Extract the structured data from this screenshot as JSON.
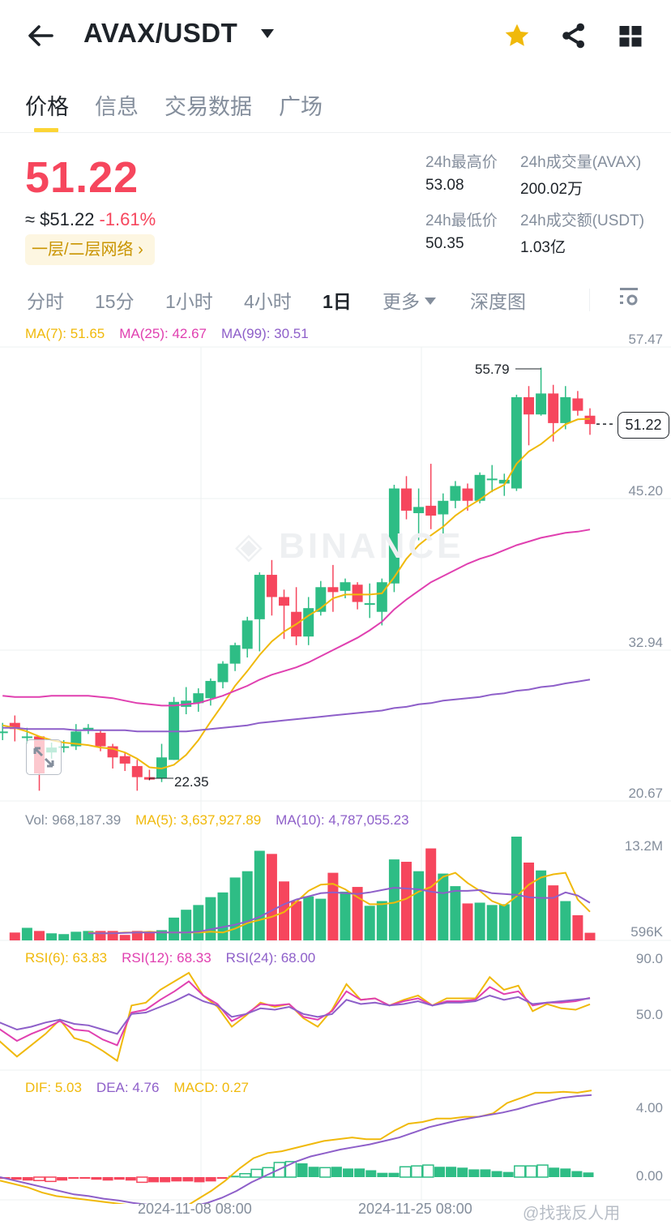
{
  "header": {
    "pair": "AVAX/USDT",
    "icons": [
      "back-arrow-icon",
      "star-icon",
      "share-icon",
      "grid-icon"
    ],
    "star_color": "#f0b90b"
  },
  "tabs": [
    {
      "label": "价格",
      "active": true
    },
    {
      "label": "信息",
      "active": false
    },
    {
      "label": "交易数据",
      "active": false
    },
    {
      "label": "广场",
      "active": false
    }
  ],
  "ticker": {
    "last_price": "51.22",
    "fiat_price": "≈ $51.22",
    "change_pct": "-1.61%",
    "network_badge": "一层/二层网络 ›",
    "stats": {
      "high_label": "24h最高价",
      "high": "53.08",
      "vol_base_label": "24h成交量(AVAX)",
      "vol_base": "200.02万",
      "low_label": "24h最低价",
      "low": "50.35",
      "vol_quote_label": "24h成交额(USDT)",
      "vol_quote": "1.03亿"
    }
  },
  "intervals": [
    {
      "label": "分时",
      "active": false
    },
    {
      "label": "15分",
      "active": false
    },
    {
      "label": "1小时",
      "active": false
    },
    {
      "label": "4小时",
      "active": false
    },
    {
      "label": "1日",
      "active": true
    },
    {
      "label": "更多",
      "active": false,
      "dropdown": true
    },
    {
      "label": "深度图",
      "active": false
    }
  ],
  "colors": {
    "up": "#2ebd85",
    "down": "#f6465d",
    "ma7": "#f0b90b",
    "ma25": "#e040b0",
    "ma99": "#8e5fc9",
    "grid": "#eef0f2",
    "axis_text": "#848e9c"
  },
  "price_legend": {
    "ma7": "MA(7): 51.65",
    "ma25": "MA(25): 42.67",
    "ma99": "MA(99): 30.51"
  },
  "price_axis": [
    "57.47",
    "45.20",
    "32.94",
    "20.67"
  ],
  "last_price_tag": "51.22",
  "high_marker": "55.79",
  "low_marker": "22.35",
  "watermark_brand": "BINANCE",
  "volume_legend": {
    "vol": "Vol: 968,187.39",
    "ma5": "MA(5): 3,637,927.89",
    "ma10": "MA(10): 4,787,055.23"
  },
  "volume_axis": [
    "13.2M",
    "596K"
  ],
  "rsi_legend": {
    "rsi6": "RSI(6): 63.83",
    "rsi12": "RSI(12): 68.33",
    "rsi24": "RSI(24): 68.00"
  },
  "rsi_axis": [
    "90.0",
    "50.0"
  ],
  "macd_legend": {
    "dif": "DIF: 5.03",
    "dea": "DEA: 4.76",
    "macd": "MACD: 0.27"
  },
  "macd_axis": [
    "4.00",
    "0.00"
  ],
  "x_axis": [
    "2024-11-08 08:00",
    "2024-11-25 08:00"
  ],
  "footer_watermark": "@找我反人用",
  "chart_data": {
    "type": "candlestick",
    "title": "AVAX/USDT 1D",
    "price_range": [
      20.67,
      57.47
    ],
    "candles": [
      {
        "o": 26.3,
        "c": 26.3,
        "h": 27.0,
        "l": 25.6
      },
      {
        "o": 27.0,
        "c": 26.5,
        "h": 27.6,
        "l": 25.5
      },
      {
        "o": 25.9,
        "c": 25.9,
        "h": 26.6,
        "l": 25.3
      },
      {
        "o": 25.9,
        "c": 22.9,
        "h": 25.9,
        "l": 21.5
      },
      {
        "o": 24.6,
        "c": 25.0,
        "h": 25.4,
        "l": 24.1
      },
      {
        "o": 25.0,
        "c": 25.1,
        "h": 25.6,
        "l": 24.6
      },
      {
        "o": 25.1,
        "c": 26.3,
        "h": 26.9,
        "l": 24.8
      },
      {
        "o": 26.4,
        "c": 26.6,
        "h": 26.9,
        "l": 26.1
      },
      {
        "o": 26.2,
        "c": 25.1,
        "h": 26.4,
        "l": 24.7
      },
      {
        "o": 25.1,
        "c": 24.2,
        "h": 25.3,
        "l": 23.3
      },
      {
        "o": 24.3,
        "c": 23.7,
        "h": 24.6,
        "l": 23.1
      },
      {
        "o": 23.5,
        "c": 22.6,
        "h": 24.0,
        "l": 21.5
      },
      {
        "o": 22.6,
        "c": 22.4,
        "h": 23.2,
        "l": 22.35
      },
      {
        "o": 22.5,
        "c": 24.2,
        "h": 25.3,
        "l": 22.2
      },
      {
        "o": 24.0,
        "c": 28.7,
        "h": 29.1,
        "l": 24.0
      },
      {
        "o": 28.3,
        "c": 28.8,
        "h": 29.9,
        "l": 27.7
      },
      {
        "o": 28.6,
        "c": 29.4,
        "h": 29.8,
        "l": 27.9
      },
      {
        "o": 29.0,
        "c": 30.4,
        "h": 30.6,
        "l": 28.4
      },
      {
        "o": 30.3,
        "c": 31.8,
        "h": 32.0,
        "l": 29.8
      },
      {
        "o": 31.8,
        "c": 33.3,
        "h": 33.5,
        "l": 31.2
      },
      {
        "o": 33.0,
        "c": 35.3,
        "h": 35.6,
        "l": 32.3
      },
      {
        "o": 35.4,
        "c": 39.0,
        "h": 39.2,
        "l": 32.8
      },
      {
        "o": 39.0,
        "c": 37.2,
        "h": 40.2,
        "l": 35.7
      },
      {
        "o": 37.2,
        "c": 36.5,
        "h": 37.8,
        "l": 33.8
      },
      {
        "o": 36.0,
        "c": 34.0,
        "h": 38.0,
        "l": 33.3
      },
      {
        "o": 34.0,
        "c": 36.3,
        "h": 37.2,
        "l": 33.3
      },
      {
        "o": 36.0,
        "c": 38.0,
        "h": 38.5,
        "l": 35.7
      },
      {
        "o": 38.0,
        "c": 37.6,
        "h": 39.8,
        "l": 36.0
      },
      {
        "o": 37.7,
        "c": 38.4,
        "h": 38.7,
        "l": 37.1
      },
      {
        "o": 38.2,
        "c": 36.8,
        "h": 38.4,
        "l": 36.2
      },
      {
        "o": 36.7,
        "c": 36.7,
        "h": 38.3,
        "l": 35.5
      },
      {
        "o": 36.0,
        "c": 38.4,
        "h": 38.7,
        "l": 34.9
      },
      {
        "o": 38.3,
        "c": 46.0,
        "h": 46.3,
        "l": 37.6
      },
      {
        "o": 46.0,
        "c": 44.2,
        "h": 47.0,
        "l": 43.5
      },
      {
        "o": 44.0,
        "c": 44.5,
        "h": 46.0,
        "l": 41.8
      },
      {
        "o": 44.6,
        "c": 43.8,
        "h": 48.0,
        "l": 42.7
      },
      {
        "o": 43.9,
        "c": 45.0,
        "h": 45.6,
        "l": 41.6
      },
      {
        "o": 45.0,
        "c": 46.2,
        "h": 46.6,
        "l": 44.4
      },
      {
        "o": 46.0,
        "c": 45.0,
        "h": 46.4,
        "l": 44.2
      },
      {
        "o": 45.0,
        "c": 47.1,
        "h": 47.3,
        "l": 44.8
      },
      {
        "o": 46.7,
        "c": 46.8,
        "h": 47.9,
        "l": 45.7
      },
      {
        "o": 46.4,
        "c": 46.7,
        "h": 47.2,
        "l": 45.4
      },
      {
        "o": 46.0,
        "c": 53.4,
        "h": 53.6,
        "l": 45.8
      },
      {
        "o": 53.4,
        "c": 52.0,
        "h": 54.3,
        "l": 49.5
      },
      {
        "o": 52.0,
        "c": 53.7,
        "h": 55.79,
        "l": 51.9
      },
      {
        "o": 53.7,
        "c": 51.3,
        "h": 54.4,
        "l": 49.8
      },
      {
        "o": 51.3,
        "c": 53.4,
        "h": 54.3,
        "l": 50.8
      },
      {
        "o": 53.3,
        "c": 52.3,
        "h": 53.9,
        "l": 51.9
      },
      {
        "o": 51.9,
        "c": 51.22,
        "h": 52.5,
        "l": 50.35
      }
    ],
    "ma7": [
      26.8,
      26.6,
      26.3,
      25.9,
      25.6,
      25.4,
      25.3,
      25.2,
      25.0,
      24.9,
      24.6,
      24.1,
      23.4,
      23.3,
      23.6,
      24.4,
      25.6,
      27.1,
      28.5,
      30.0,
      31.2,
      32.5,
      33.6,
      34.4,
      35.0,
      35.7,
      36.3,
      37.1,
      37.4,
      37.4,
      37.4,
      37.5,
      38.8,
      40.3,
      41.4,
      42.2,
      42.9,
      43.8,
      44.5,
      45.1,
      45.8,
      46.3,
      48.0,
      49.0,
      49.6,
      50.4,
      51.2,
      51.6,
      51.65
    ],
    "ma25": [
      29.2,
      29.1,
      29.1,
      29.1,
      29.2,
      29.2,
      29.2,
      29.2,
      29.1,
      29.0,
      28.8,
      28.6,
      28.5,
      28.4,
      28.4,
      28.5,
      28.6,
      28.9,
      29.2,
      29.6,
      30.0,
      30.5,
      30.9,
      31.2,
      31.5,
      31.9,
      32.4,
      32.9,
      33.4,
      33.9,
      34.5,
      35.2,
      36.2,
      37.0,
      37.7,
      38.4,
      38.9,
      39.4,
      39.9,
      40.3,
      40.6,
      41.0,
      41.4,
      41.7,
      42.0,
      42.2,
      42.4,
      42.5,
      42.67
    ],
    "ma99": [
      26.6,
      26.6,
      26.5,
      26.5,
      26.5,
      26.5,
      26.4,
      26.4,
      26.4,
      26.4,
      26.4,
      26.3,
      26.3,
      26.3,
      26.3,
      26.3,
      26.4,
      26.5,
      26.6,
      26.7,
      26.8,
      27.0,
      27.1,
      27.2,
      27.3,
      27.4,
      27.5,
      27.6,
      27.7,
      27.8,
      27.9,
      28.0,
      28.2,
      28.3,
      28.5,
      28.6,
      28.8,
      28.9,
      29.0,
      29.1,
      29.3,
      29.4,
      29.6,
      29.7,
      29.9,
      30.0,
      30.2,
      30.35,
      30.51
    ],
    "volume": {
      "range": [
        596000,
        13200000
      ],
      "values": [
        1.0,
        1.6,
        1.2,
        0.9,
        0.8,
        1.1,
        1.2,
        1.2,
        1.2,
        0.7,
        1.2,
        1.0,
        1.3,
        2.9,
        3.9,
        4.5,
        5.5,
        6.1,
        8.0,
        8.8,
        11.4,
        11.0,
        7.5,
        5.0,
        5.6,
        5.3,
        8.6,
        6.2,
        6.8,
        4.4,
        5.0,
        10.3,
        10.0,
        8.8,
        11.7,
        8.5,
        6.9,
        4.7,
        4.8,
        4.5,
        4.6,
        13.2,
        9.9,
        8.9,
        7.0,
        5.0,
        3.2,
        0.97
      ],
      "ma5": [
        1.0,
        0.9,
        0.9,
        1.0,
        1.0,
        1.1,
        1.0,
        1.0,
        1.0,
        1.0,
        1.1,
        1.0,
        1.5,
        2.2,
        2.6,
        3.0,
        3.6,
        4.9,
        6.3,
        7.1,
        7.2,
        6.5,
        5.5,
        4.6,
        4.6,
        4.8,
        5.3,
        6.2,
        6.8,
        8.1,
        8.6,
        7.3,
        6.3,
        5.0,
        4.4,
        5.6,
        7.1,
        8.0,
        8.4,
        8.6,
        5.2,
        3.64
      ],
      "ma10": [
        0.9,
        0.9,
        0.9,
        0.95,
        1.0,
        1.0,
        1.0,
        1.0,
        1.0,
        1.1,
        1.4,
        1.7,
        2.0,
        2.4,
        3.0,
        3.8,
        4.6,
        5.2,
        5.6,
        6.0,
        6.1,
        6.0,
        5.9,
        6.1,
        6.4,
        6.7,
        6.6,
        6.5,
        6.2,
        6.0,
        6.3,
        6.3,
        6.4,
        6.0,
        5.9,
        5.8,
        5.5,
        5.4,
        5.4,
        6.1,
        5.7,
        4.79
      ]
    },
    "rsi": {
      "range": [
        30,
        90
      ],
      "rsi6": [
        40,
        27,
        35,
        43,
        53,
        40,
        37,
        31,
        24,
        63,
        65,
        74,
        80,
        86,
        70,
        62,
        48,
        56,
        65,
        62,
        64,
        54,
        48,
        60,
        78,
        67,
        68,
        63,
        67,
        70,
        63,
        68,
        68,
        68,
        83,
        74,
        77,
        59,
        64,
        61,
        60,
        63.83
      ],
      "rsi12": [
        48,
        38,
        43,
        47,
        52,
        46,
        45,
        39,
        35,
        58,
        60,
        67,
        73,
        80,
        70,
        64,
        52,
        57,
        64,
        63,
        64,
        55,
        53,
        59,
        73,
        67,
        68,
        63,
        66,
        68,
        63,
        66,
        66,
        67,
        76,
        71,
        73,
        63,
        65,
        65,
        66,
        68.33
      ],
      "rsi24": [
        52,
        46,
        48,
        51,
        53,
        50,
        49,
        46,
        43,
        57,
        58,
        62,
        66,
        71,
        66,
        63,
        55,
        57,
        61,
        60,
        62,
        57,
        55,
        57,
        67,
        64,
        65,
        63,
        64,
        66,
        63,
        65,
        65,
        66,
        70,
        67,
        69,
        64,
        65,
        66,
        67,
        68.0
      ]
    },
    "macd": {
      "range": [
        -0.6,
        4.8
      ],
      "dif": [
        -0.2,
        -0.4,
        -0.6,
        -0.9,
        -1.1,
        -1.2,
        -1.3,
        -1.4,
        -1.5,
        -1.6,
        -1.8,
        -2.0,
        -2.05,
        -1.8,
        -1.3,
        -0.8,
        -0.2,
        0.5,
        1.1,
        1.4,
        1.5,
        1.7,
        1.9,
        2.1,
        2.2,
        2.3,
        2.2,
        2.2,
        2.7,
        3.1,
        3.2,
        3.4,
        3.4,
        3.5,
        3.5,
        3.7,
        4.3,
        4.6,
        4.9,
        4.9,
        4.95,
        4.9,
        5.03
      ],
      "dea": [
        0.0,
        -0.2,
        -0.4,
        -0.6,
        -0.8,
        -1.0,
        -1.1,
        -1.25,
        -1.35,
        -1.5,
        -1.6,
        -1.7,
        -1.8,
        -1.7,
        -1.5,
        -1.2,
        -0.8,
        -0.3,
        0.1,
        0.5,
        0.9,
        1.2,
        1.4,
        1.6,
        1.75,
        1.9,
        2.1,
        2.3,
        2.6,
        2.9,
        3.1,
        3.3,
        3.45,
        3.6,
        3.75,
        3.95,
        4.2,
        4.4,
        4.6,
        4.7,
        4.76
      ],
      "hist": [
        -0.1,
        -0.15,
        -0.2,
        -0.2,
        -0.25,
        -0.2,
        -0.1,
        -0.05,
        -0.15,
        -0.2,
        -0.15,
        -0.2,
        -0.3,
        -0.3,
        -0.3,
        -0.25,
        -0.25,
        -0.3,
        -0.25,
        -0.1,
        0.08,
        0.2,
        0.45,
        0.55,
        0.85,
        0.9,
        0.8,
        0.6,
        0.55,
        0.6,
        0.5,
        0.5,
        0.4,
        0.25,
        0.25,
        0.6,
        0.65,
        0.7,
        0.6,
        0.6,
        0.55,
        0.45,
        0.45,
        0.35,
        0.3,
        0.65,
        0.65,
        0.7,
        0.55,
        0.5,
        0.35,
        0.27
      ],
      "hist_hollow": [
        false,
        false,
        false,
        true,
        true,
        false,
        false,
        false,
        false,
        false,
        false,
        false,
        true,
        false,
        false,
        false,
        false,
        false,
        false,
        false,
        false,
        true,
        true,
        true,
        true,
        true,
        false,
        false,
        true,
        false,
        false,
        false,
        false,
        false,
        false,
        true,
        true,
        true,
        false,
        false,
        false,
        false,
        false,
        false,
        false,
        true,
        true,
        true,
        false,
        false,
        false,
        false
      ]
    },
    "xlabel_ticks": [
      "2024-11-08 08:00",
      "2024-11-25 08:00"
    ]
  }
}
